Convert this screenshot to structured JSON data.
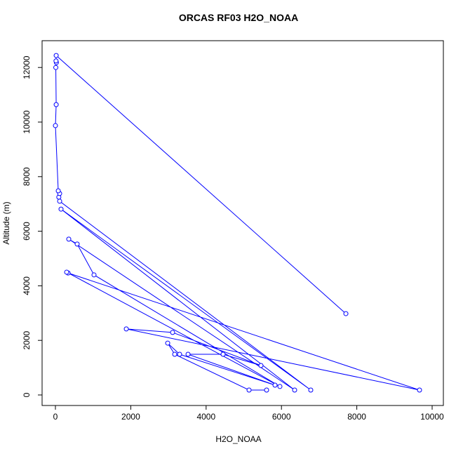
{
  "chart_data": {
    "type": "line",
    "title": "ORCAS RF03 H2O_NOAA",
    "x_label": "H2O_NOAA",
    "y_label": "Altitude (m)",
    "series": [
      {
        "name": "H2O_NOAA",
        "color": "#0000ff",
        "x": [
          5605,
          5140,
          3166,
          2980,
          3296,
          5829,
          3520,
          4450,
          5456,
          3110,
          1881,
          9665,
          335,
          298,
          5959,
          1024,
          577,
          354,
          6350,
          149,
          6778,
          112,
          90,
          112,
          75,
          0,
          20,
          10,
          25,
          15,
          20,
          7710
        ],
        "values": [
          180,
          180,
          1490,
          1900,
          1490,
          360,
          1490,
          1490,
          1080,
          2290,
          2420,
          180,
          4470,
          4500,
          310,
          4400,
          5530,
          5710,
          180,
          6810,
          180,
          7100,
          7250,
          7380,
          7480,
          9870,
          10640,
          12000,
          12180,
          12240,
          12440,
          2980
        ]
      }
    ],
    "xlim": [
      -354,
      10298
    ],
    "ylim": [
      -386,
      12982
    ],
    "xticks": [
      0,
      2000,
      4000,
      6000,
      8000,
      10000
    ],
    "yticks": [
      0,
      2000,
      4000,
      6000,
      8000,
      10000,
      12000
    ],
    "markers": true
  }
}
